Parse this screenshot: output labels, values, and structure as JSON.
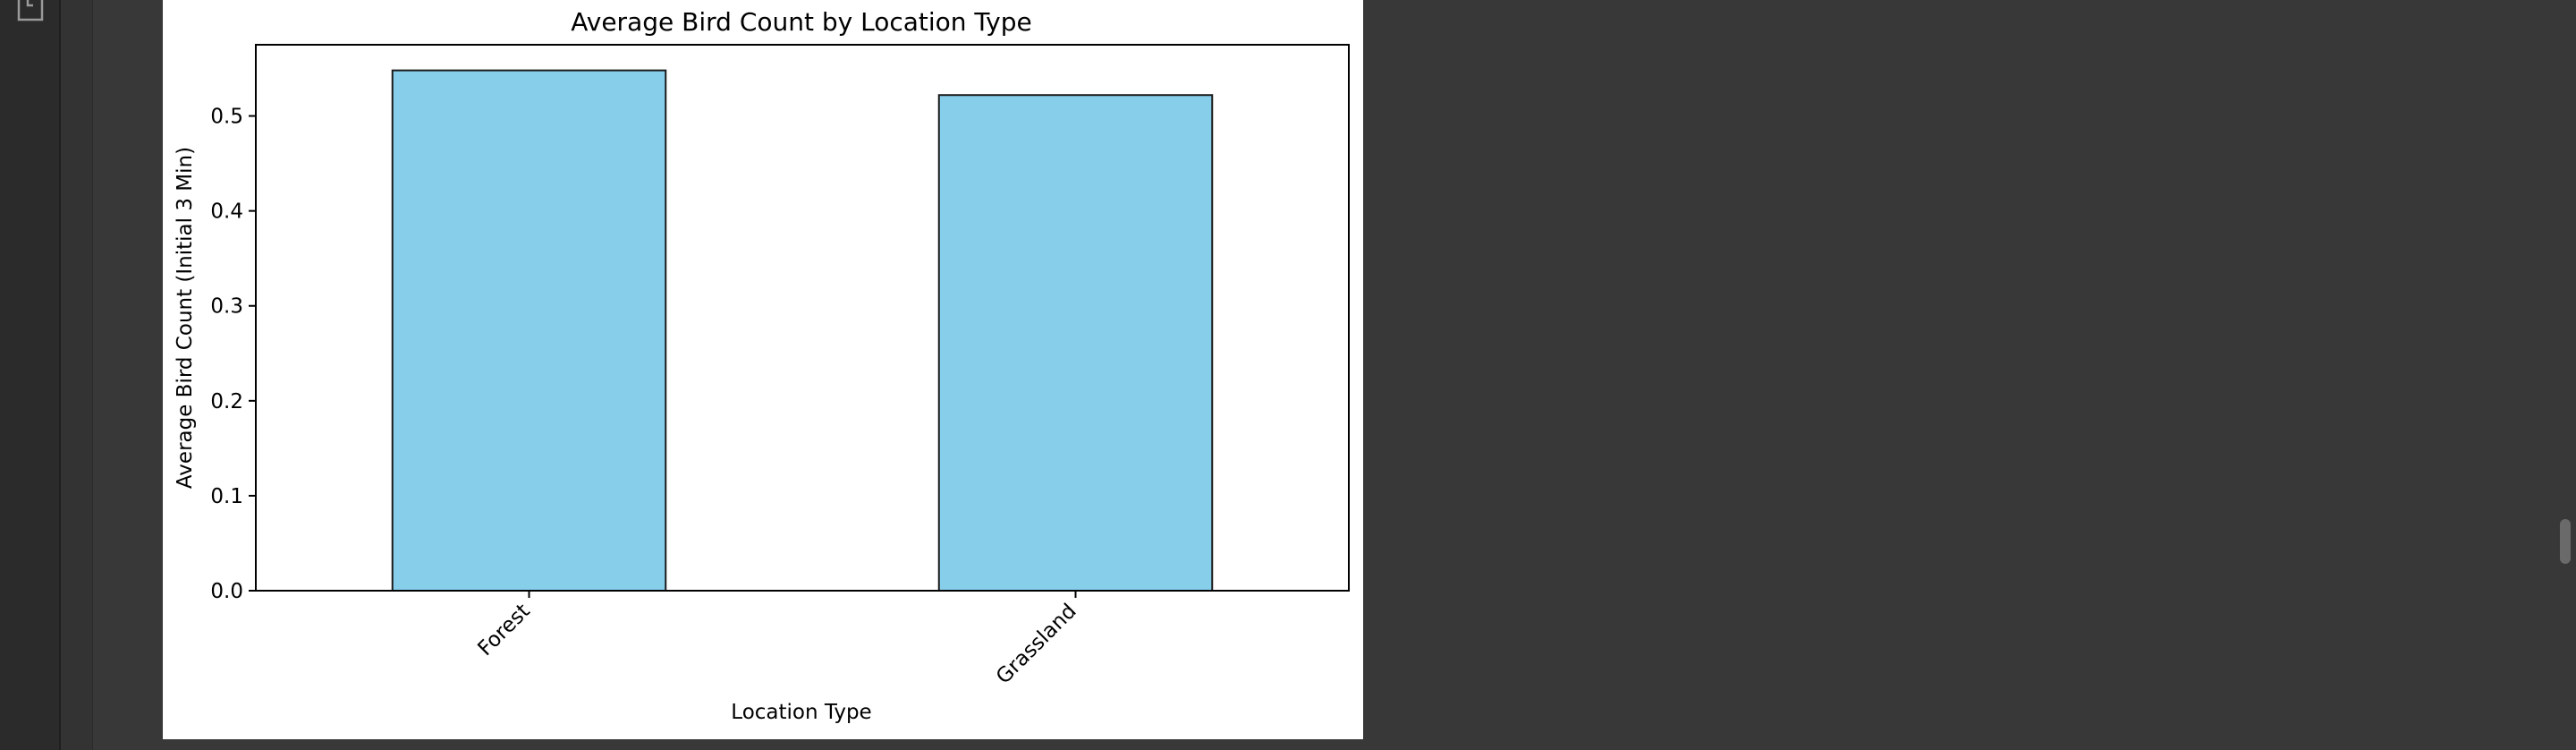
{
  "chart_data": {
    "type": "bar",
    "title": "Average Bird Count by Location Type",
    "xlabel": "Location Type",
    "ylabel": "Average Bird Count (Initial 3 Min)",
    "categories": [
      "Forest",
      "Grassland"
    ],
    "values": [
      0.548,
      0.522
    ],
    "ylim": [
      0,
      0.575
    ],
    "yticks": [
      0.0,
      0.1,
      0.2,
      0.3,
      0.4,
      0.5
    ],
    "ytick_labels": [
      "0.0",
      "0.1",
      "0.2",
      "0.3",
      "0.4",
      "0.5"
    ],
    "grid": false,
    "bar_color": "#87ceeb",
    "edge_color": "#1a1a1a"
  },
  "colors": {
    "editor_background": "#383838",
    "activity_bar": "#2b2b2b",
    "output_background": "#ffffff"
  },
  "icons": {
    "activity_file": "file-icon"
  }
}
